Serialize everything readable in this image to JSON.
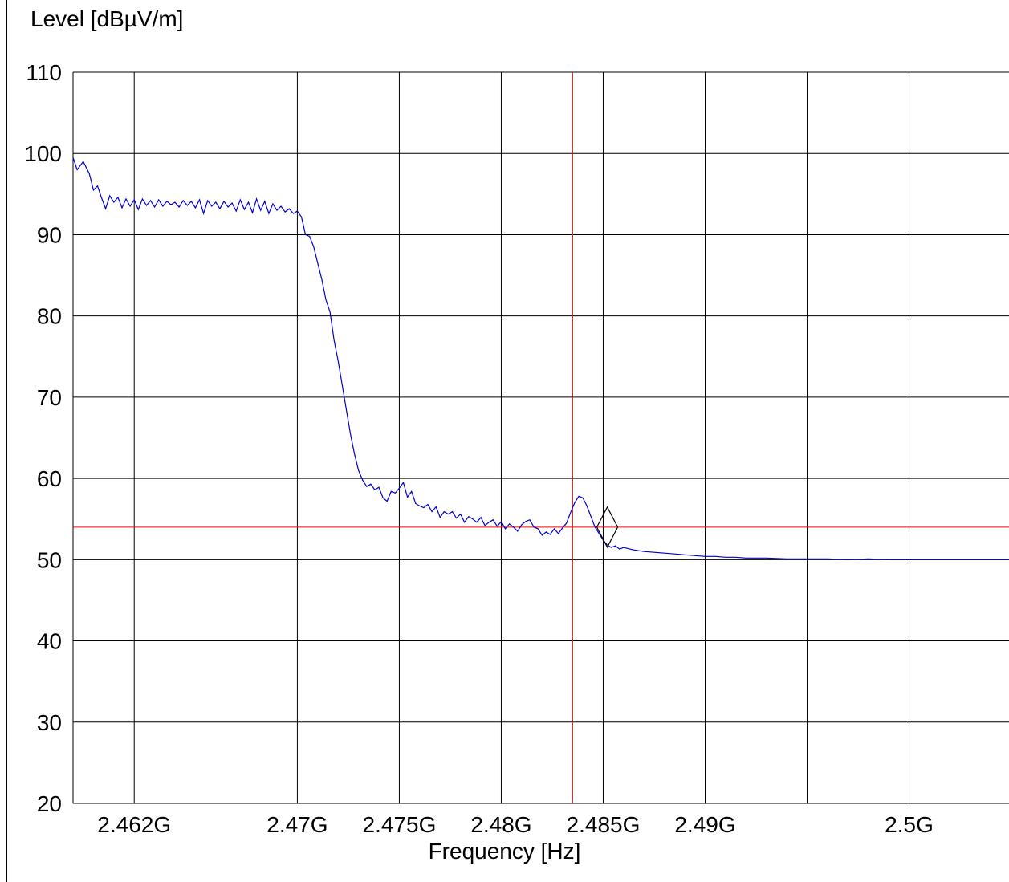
{
  "chart_data": {
    "type": "line",
    "ylabel": "Level [dBµV/m]",
    "xlabel": "Frequency [Hz]",
    "xlim": [
      2.459,
      2.5049
    ],
    "ylim": [
      20,
      110
    ],
    "yticks": [
      20,
      30,
      40,
      50,
      60,
      70,
      80,
      90,
      100,
      110
    ],
    "xticks": [
      {
        "value": 2.462,
        "label": "2.462G"
      },
      {
        "value": 2.47,
        "label": "2.47G"
      },
      {
        "value": 2.475,
        "label": "2.475G"
      },
      {
        "value": 2.48,
        "label": "2.48G"
      },
      {
        "value": 2.485,
        "label": "2.485G"
      },
      {
        "value": 2.49,
        "label": "2.49G"
      },
      {
        "value": 2.5,
        "label": "2.5G"
      }
    ],
    "xgrid_extra": [
      2.495
    ],
    "grid": true,
    "series": [
      {
        "color": "#0000cc",
        "points": [
          [
            2.459,
            99.5
          ],
          [
            2.4592,
            98.0
          ],
          [
            2.4595,
            99.0
          ],
          [
            2.4598,
            97.5
          ],
          [
            2.46,
            95.5
          ],
          [
            2.4602,
            96.0
          ],
          [
            2.4604,
            94.5
          ],
          [
            2.4606,
            93.2
          ],
          [
            2.4608,
            94.8
          ],
          [
            2.461,
            94.0
          ],
          [
            2.4612,
            94.6
          ],
          [
            2.4614,
            93.3
          ],
          [
            2.4616,
            94.4
          ],
          [
            2.4618,
            93.5
          ],
          [
            2.462,
            94.3
          ],
          [
            2.4622,
            93.1
          ],
          [
            2.4624,
            94.4
          ],
          [
            2.4626,
            93.6
          ],
          [
            2.4628,
            94.2
          ],
          [
            2.463,
            93.4
          ],
          [
            2.4632,
            94.3
          ],
          [
            2.4634,
            93.5
          ],
          [
            2.4636,
            94.1
          ],
          [
            2.4638,
            93.7
          ],
          [
            2.464,
            94.0
          ],
          [
            2.4642,
            93.4
          ],
          [
            2.4644,
            94.2
          ],
          [
            2.4646,
            93.6
          ],
          [
            2.4648,
            94.1
          ],
          [
            2.465,
            93.3
          ],
          [
            2.4652,
            94.3
          ],
          [
            2.4654,
            92.6
          ],
          [
            2.4656,
            94.2
          ],
          [
            2.4658,
            93.5
          ],
          [
            2.466,
            94.0
          ],
          [
            2.4662,
            93.2
          ],
          [
            2.4664,
            94.1
          ],
          [
            2.4666,
            93.4
          ],
          [
            2.4668,
            93.9
          ],
          [
            2.467,
            92.9
          ],
          [
            2.4672,
            94.3
          ],
          [
            2.4674,
            93.1
          ],
          [
            2.4676,
            94.0
          ],
          [
            2.4678,
            92.7
          ],
          [
            2.468,
            94.4
          ],
          [
            2.4682,
            93.0
          ],
          [
            2.4684,
            94.1
          ],
          [
            2.4686,
            92.6
          ],
          [
            2.4688,
            93.8
          ],
          [
            2.469,
            93.0
          ],
          [
            2.4692,
            93.5
          ],
          [
            2.4694,
            92.8
          ],
          [
            2.4696,
            93.2
          ],
          [
            2.4698,
            92.6
          ],
          [
            2.47,
            92.9
          ],
          [
            2.4702,
            92.2
          ],
          [
            2.4704,
            90.0
          ],
          [
            2.4706,
            89.8
          ],
          [
            2.4708,
            88.5
          ],
          [
            2.471,
            86.5
          ],
          [
            2.4712,
            84.5
          ],
          [
            2.4714,
            82.0
          ],
          [
            2.4716,
            80.5
          ],
          [
            2.4718,
            77.0
          ],
          [
            2.472,
            74.5
          ],
          [
            2.4722,
            71.5
          ],
          [
            2.4724,
            68.5
          ],
          [
            2.4726,
            65.5
          ],
          [
            2.4728,
            63.0
          ],
          [
            2.473,
            61.0
          ],
          [
            2.4732,
            59.8
          ],
          [
            2.4734,
            59.0
          ],
          [
            2.4736,
            59.3
          ],
          [
            2.4738,
            58.6
          ],
          [
            2.474,
            58.9
          ],
          [
            2.4742,
            57.6
          ],
          [
            2.4744,
            57.2
          ],
          [
            2.4746,
            58.4
          ],
          [
            2.4748,
            58.2
          ],
          [
            2.475,
            58.8
          ],
          [
            2.4752,
            59.5
          ],
          [
            2.4754,
            57.7
          ],
          [
            2.4756,
            58.4
          ],
          [
            2.4758,
            56.9
          ],
          [
            2.476,
            56.6
          ],
          [
            2.4762,
            56.4
          ],
          [
            2.4764,
            56.8
          ],
          [
            2.4766,
            55.9
          ],
          [
            2.4768,
            56.5
          ],
          [
            2.477,
            55.2
          ],
          [
            2.4772,
            55.9
          ],
          [
            2.4774,
            55.6
          ],
          [
            2.4776,
            55.9
          ],
          [
            2.4778,
            55.1
          ],
          [
            2.478,
            55.6
          ],
          [
            2.4782,
            54.6
          ],
          [
            2.4784,
            55.3
          ],
          [
            2.4786,
            55.0
          ],
          [
            2.4788,
            54.6
          ],
          [
            2.479,
            55.2
          ],
          [
            2.4792,
            54.2
          ],
          [
            2.4794,
            54.6
          ],
          [
            2.4796,
            54.9
          ],
          [
            2.4798,
            54.1
          ],
          [
            2.48,
            54.7
          ],
          [
            2.4802,
            53.8
          ],
          [
            2.4804,
            54.4
          ],
          [
            2.4806,
            54.0
          ],
          [
            2.4808,
            53.5
          ],
          [
            2.481,
            54.3
          ],
          [
            2.4812,
            54.7
          ],
          [
            2.4814,
            54.9
          ],
          [
            2.4816,
            54.0
          ],
          [
            2.4818,
            53.8
          ],
          [
            2.482,
            53.0
          ],
          [
            2.4822,
            53.4
          ],
          [
            2.4824,
            53.1
          ],
          [
            2.4826,
            53.8
          ],
          [
            2.4828,
            53.2
          ],
          [
            2.483,
            53.9
          ],
          [
            2.4832,
            54.5
          ],
          [
            2.4834,
            55.8
          ],
          [
            2.4836,
            57.0
          ],
          [
            2.4838,
            57.8
          ],
          [
            2.484,
            57.6
          ],
          [
            2.4842,
            56.6
          ],
          [
            2.4844,
            55.3
          ],
          [
            2.4846,
            54.0
          ],
          [
            2.4848,
            53.2
          ],
          [
            2.485,
            52.4
          ],
          [
            2.4852,
            51.8
          ],
          [
            2.4854,
            51.5
          ],
          [
            2.4856,
            51.7
          ],
          [
            2.4858,
            51.3
          ],
          [
            2.486,
            51.5
          ],
          [
            2.4865,
            51.2
          ],
          [
            2.487,
            51.0
          ],
          [
            2.4875,
            50.9
          ],
          [
            2.488,
            50.8
          ],
          [
            2.4885,
            50.7
          ],
          [
            2.489,
            50.6
          ],
          [
            2.4895,
            50.5
          ],
          [
            2.49,
            50.4
          ],
          [
            2.4905,
            50.4
          ],
          [
            2.491,
            50.3
          ],
          [
            2.4915,
            50.3
          ],
          [
            2.492,
            50.2
          ],
          [
            2.493,
            50.2
          ],
          [
            2.494,
            50.1
          ],
          [
            2.495,
            50.1
          ],
          [
            2.496,
            50.1
          ],
          [
            2.497,
            50.0
          ],
          [
            2.498,
            50.1
          ],
          [
            2.499,
            50.0
          ],
          [
            2.5,
            50.0
          ],
          [
            2.501,
            50.0
          ],
          [
            2.502,
            50.0
          ],
          [
            2.503,
            50.0
          ],
          [
            2.5049,
            50.0
          ]
        ]
      }
    ],
    "limit_line": {
      "value": 54,
      "color": "#ff0000"
    },
    "band_edge": {
      "value": 2.4835,
      "color": "#ff0000"
    },
    "marker": {
      "x": 2.4852,
      "y": 54,
      "shape": "diamond"
    }
  }
}
